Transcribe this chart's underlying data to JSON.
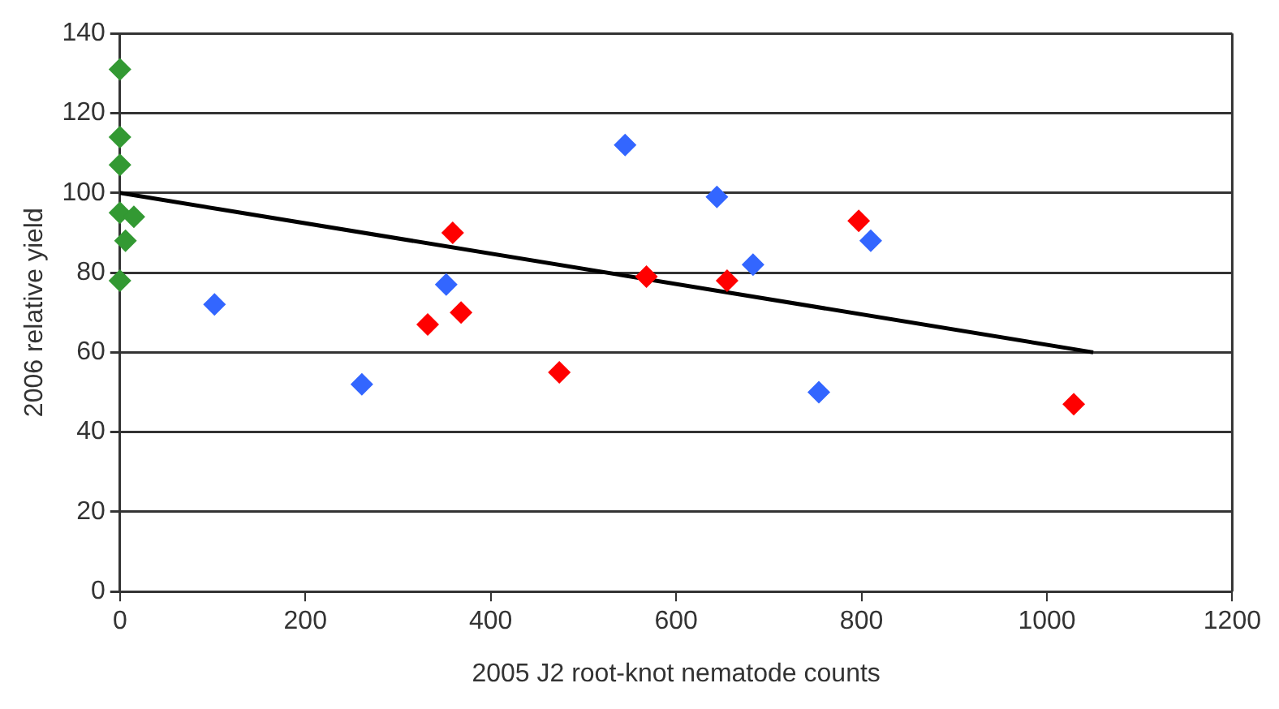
{
  "chart_data": {
    "type": "scatter",
    "xlabel": "2005 J2 root-knot nematode counts",
    "ylabel": "2006 relative yield",
    "xlim": [
      0,
      1200
    ],
    "xticks": [
      0,
      200,
      400,
      600,
      800,
      1000,
      1200
    ],
    "ylim": [
      0,
      140
    ],
    "yticks": [
      0,
      20,
      40,
      60,
      80,
      100,
      120,
      140
    ],
    "grid": "y",
    "legend": false,
    "series": [
      {
        "color": "#339933",
        "marker": "diamond",
        "x": [
          0,
          0,
          0,
          0,
          15,
          6,
          0
        ],
        "values": [
          131,
          114,
          107,
          95,
          94,
          88,
          78
        ]
      },
      {
        "color": "#3366ff",
        "marker": "diamond",
        "x": [
          102,
          261,
          352,
          545,
          644,
          683,
          810,
          754
        ],
        "values": [
          72,
          52,
          77,
          112,
          99,
          82,
          88,
          50
        ]
      },
      {
        "color": "#ff0000",
        "marker": "diamond",
        "x": [
          359,
          332,
          368,
          474,
          568,
          655,
          797,
          1029
        ],
        "values": [
          90,
          67,
          70,
          55,
          79,
          78,
          93,
          47
        ]
      },
      {
        "type": "line",
        "color": "#000000",
        "marker": "none",
        "x": [
          0,
          1050
        ],
        "values": [
          100,
          60
        ]
      }
    ]
  }
}
